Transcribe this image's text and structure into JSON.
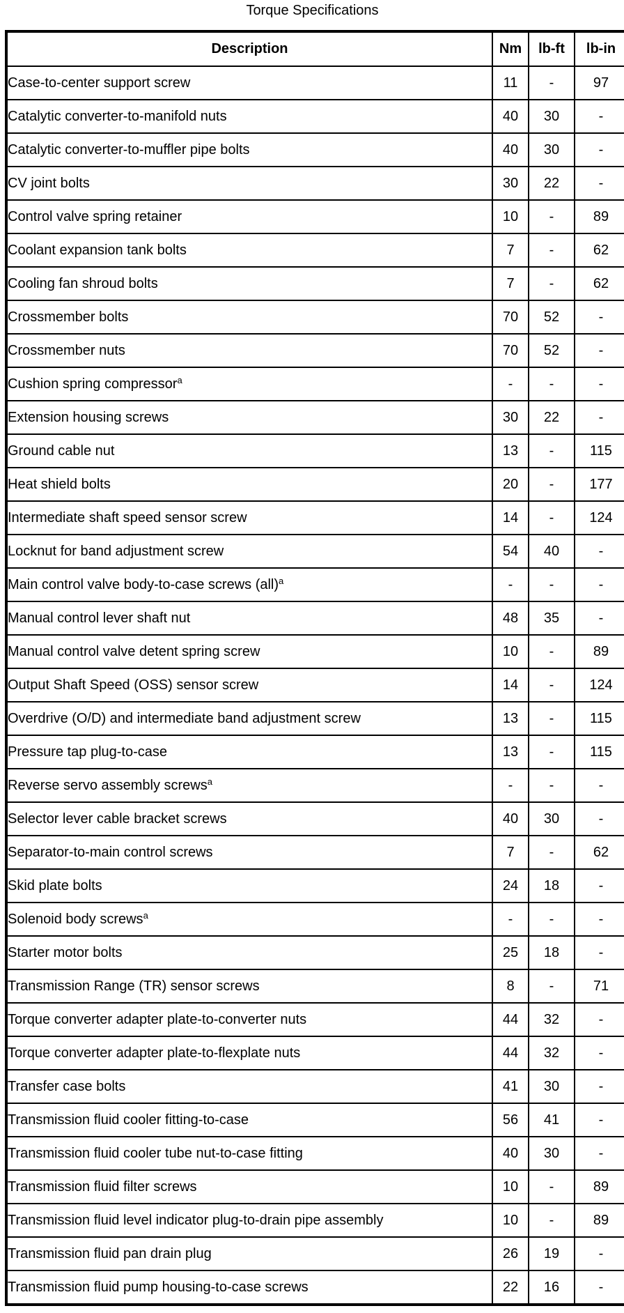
{
  "title": "Torque Specifications",
  "colors": {
    "text": "#000000",
    "background": "#ffffff",
    "border": "#000000"
  },
  "table": {
    "headers": [
      "Description",
      "Nm",
      "lb-ft",
      "lb-in"
    ],
    "rows": [
      {
        "description": "Case-to-center support screw",
        "sup": "",
        "nm": "11",
        "lb_ft": "-",
        "lb_in": "97"
      },
      {
        "description": "Catalytic converter-to-manifold nuts",
        "sup": "",
        "nm": "40",
        "lb_ft": "30",
        "lb_in": "-"
      },
      {
        "description": "Catalytic converter-to-muffler pipe bolts",
        "sup": "",
        "nm": "40",
        "lb_ft": "30",
        "lb_in": "-"
      },
      {
        "description": "CV joint bolts",
        "sup": "",
        "nm": "30",
        "lb_ft": "22",
        "lb_in": "-"
      },
      {
        "description": "Control valve spring retainer",
        "sup": "",
        "nm": "10",
        "lb_ft": "-",
        "lb_in": "89"
      },
      {
        "description": "Coolant expansion tank bolts",
        "sup": "",
        "nm": "7",
        "lb_ft": "-",
        "lb_in": "62"
      },
      {
        "description": "Cooling fan shroud bolts",
        "sup": "",
        "nm": "7",
        "lb_ft": "-",
        "lb_in": "62"
      },
      {
        "description": "Crossmember bolts",
        "sup": "",
        "nm": "70",
        "lb_ft": "52",
        "lb_in": "-"
      },
      {
        "description": "Crossmember nuts",
        "sup": "",
        "nm": "70",
        "lb_ft": "52",
        "lb_in": "-"
      },
      {
        "description": "Cushion spring compressor",
        "sup": "a",
        "nm": "-",
        "lb_ft": "-",
        "lb_in": "-"
      },
      {
        "description": "Extension housing screws",
        "sup": "",
        "nm": "30",
        "lb_ft": "22",
        "lb_in": "-"
      },
      {
        "description": "Ground cable nut",
        "sup": "",
        "nm": "13",
        "lb_ft": "-",
        "lb_in": "115"
      },
      {
        "description": "Heat shield bolts",
        "sup": "",
        "nm": "20",
        "lb_ft": "-",
        "lb_in": "177"
      },
      {
        "description": "Intermediate shaft speed sensor screw",
        "sup": "",
        "nm": "14",
        "lb_ft": "-",
        "lb_in": "124"
      },
      {
        "description": "Locknut for band adjustment screw",
        "sup": "",
        "nm": "54",
        "lb_ft": "40",
        "lb_in": "-"
      },
      {
        "description": "Main control valve body-to-case screws (all)",
        "sup": "a",
        "nm": "-",
        "lb_ft": "-",
        "lb_in": "-"
      },
      {
        "description": "Manual control lever shaft nut",
        "sup": "",
        "nm": "48",
        "lb_ft": "35",
        "lb_in": "-"
      },
      {
        "description": "Manual control valve detent spring screw",
        "sup": "",
        "nm": "10",
        "lb_ft": "-",
        "lb_in": "89"
      },
      {
        "description": "Output Shaft Speed (OSS) sensor screw",
        "sup": "",
        "nm": "14",
        "lb_ft": "-",
        "lb_in": "124"
      },
      {
        "description": "Overdrive (O/D) and intermediate band adjustment screw",
        "sup": "",
        "nm": "13",
        "lb_ft": "-",
        "lb_in": "115"
      },
      {
        "description": "Pressure tap plug-to-case",
        "sup": "",
        "nm": "13",
        "lb_ft": "-",
        "lb_in": "115"
      },
      {
        "description": "Reverse servo assembly screws",
        "sup": "a",
        "nm": "-",
        "lb_ft": "-",
        "lb_in": "-"
      },
      {
        "description": "Selector lever cable bracket screws",
        "sup": "",
        "nm": "40",
        "lb_ft": "30",
        "lb_in": "-"
      },
      {
        "description": "Separator-to-main control screws",
        "sup": "",
        "nm": "7",
        "lb_ft": "-",
        "lb_in": "62"
      },
      {
        "description": "Skid plate bolts",
        "sup": "",
        "nm": "24",
        "lb_ft": "18",
        "lb_in": "-"
      },
      {
        "description": "Solenoid body screws",
        "sup": "a",
        "nm": "-",
        "lb_ft": "-",
        "lb_in": "-"
      },
      {
        "description": "Starter motor bolts",
        "sup": "",
        "nm": "25",
        "lb_ft": "18",
        "lb_in": "-"
      },
      {
        "description": "Transmission Range (TR) sensor screws",
        "sup": "",
        "nm": "8",
        "lb_ft": "-",
        "lb_in": "71"
      },
      {
        "description": "Torque converter adapter plate-to-converter nuts",
        "sup": "",
        "nm": "44",
        "lb_ft": "32",
        "lb_in": "-"
      },
      {
        "description": "Torque converter adapter plate-to-flexplate nuts",
        "sup": "",
        "nm": "44",
        "lb_ft": "32",
        "lb_in": "-"
      },
      {
        "description": "Transfer case bolts",
        "sup": "",
        "nm": "41",
        "lb_ft": "30",
        "lb_in": "-"
      },
      {
        "description": "Transmission fluid cooler fitting-to-case",
        "sup": "",
        "nm": "56",
        "lb_ft": "41",
        "lb_in": "-"
      },
      {
        "description": "Transmission fluid cooler tube nut-to-case fitting",
        "sup": "",
        "nm": "40",
        "lb_ft": "30",
        "lb_in": "-"
      },
      {
        "description": "Transmission fluid filter screws",
        "sup": "",
        "nm": "10",
        "lb_ft": "-",
        "lb_in": "89"
      },
      {
        "description": "Transmission fluid level indicator plug-to-drain pipe assembly",
        "sup": "",
        "nm": "10",
        "lb_ft": "-",
        "lb_in": "89"
      },
      {
        "description": "Transmission fluid pan drain plug",
        "sup": "",
        "nm": "26",
        "lb_ft": "19",
        "lb_in": "-"
      },
      {
        "description": "Transmission fluid pump housing-to-case screws",
        "sup": "",
        "nm": "22",
        "lb_ft": "16",
        "lb_in": "-"
      }
    ]
  }
}
